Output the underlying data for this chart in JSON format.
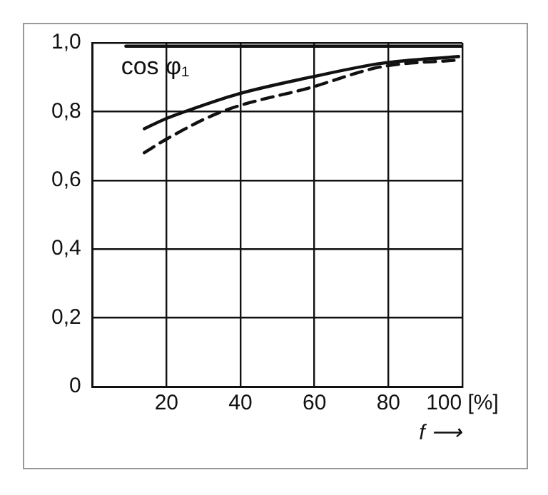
{
  "chart_data": {
    "type": "line",
    "xlabel": "f ⟶",
    "annotations": [
      "cos φ₁"
    ],
    "xlim": [
      0,
      100
    ],
    "ylim": [
      0,
      1
    ],
    "xticks": [
      20,
      40,
      60,
      80,
      {
        "value": 100,
        "label": "100 [%]"
      }
    ],
    "yticks": [
      0,
      {
        "value": 0.2,
        "label": "0,2"
      },
      {
        "value": 0.4,
        "label": "0,4"
      },
      {
        "value": 0.6,
        "label": "0,6"
      },
      {
        "value": 0.8,
        "label": "0,8"
      },
      {
        "value": 1,
        "label": "1,0"
      }
    ],
    "grid": true,
    "legend": false,
    "marker": "none",
    "series": [
      {
        "color": "#111111",
        "line_style": "solid",
        "x": [
          9,
          100
        ],
        "values": [
          0.99,
          0.99
        ]
      },
      {
        "color": "#111111",
        "line_style": "solid",
        "x": [
          14,
          20,
          25,
          39,
          59,
          78,
          99
        ],
        "values": [
          0.75,
          0.78,
          0.8,
          0.85,
          0.9,
          0.94,
          0.96
        ]
      },
      {
        "color": "#111111",
        "line_style": "dashed",
        "x": [
          14,
          20,
          35,
          59,
          78,
          99
        ],
        "values": [
          0.68,
          0.72,
          0.8,
          0.87,
          0.93,
          0.95
        ]
      }
    ]
  }
}
